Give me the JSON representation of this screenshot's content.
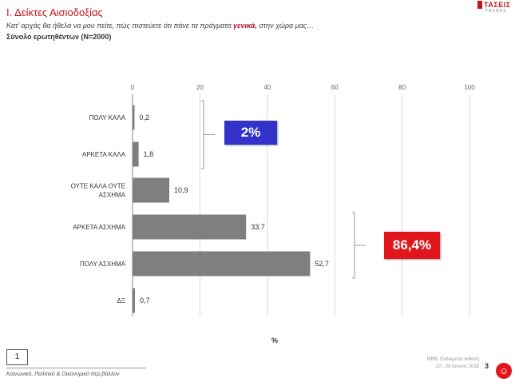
{
  "header": {
    "title": "Ι. Δείκτες Αισιοδοξίας",
    "subtitle_before": "Κατ’ αρχάς θα ήθελα να μου πείτε, πώς πιστεύετε ότι πάνε τα πράγματα ",
    "subtitle_highlight": "γενικά,",
    "subtitle_after": " στην χώρα μας…",
    "sample": "Σύνολο ερωτηθέντων (N=2000)"
  },
  "logo": {
    "name": "TAΣΕΙΣ",
    "tagline": "TRENDS"
  },
  "chart_data": {
    "type": "bar",
    "orientation": "horizontal",
    "categories": [
      [
        "ΠΟΛΥ ΚΑΛΑ"
      ],
      [
        "ΑΡΚΕΤΑ ΚΑΛΑ"
      ],
      [
        "ΟΥΤΕ ΚΑΛΑ ΟΥΤΕ",
        "ΑΣΧΗΜΑ"
      ],
      [
        "ΑΡΚΕΤΑ ΑΣΧΗΜΑ"
      ],
      [
        "ΠΟΛΥ ΑΣΧΗΜΑ"
      ],
      [
        "ΔΞ"
      ]
    ],
    "values": [
      0.2,
      1.8,
      10.9,
      33.7,
      52.7,
      0.7
    ],
    "value_labels": [
      "0,2",
      "1,8",
      "10,9",
      "33,7",
      "52,7",
      "0,7"
    ],
    "xlim": [
      0,
      100
    ],
    "xticks": [
      0,
      20,
      40,
      60,
      80,
      100
    ],
    "xtick_labels": [
      "0",
      "20",
      "40",
      "60",
      "80",
      "100"
    ],
    "xlabel": "%",
    "grid": true,
    "bar_color": "#7f7f7f",
    "callouts": [
      {
        "text": "2%",
        "color": "#3333cc",
        "groups": [
          0,
          1
        ]
      },
      {
        "text": "86,4%",
        "color": "#e0161c",
        "groups": [
          3,
          4
        ]
      }
    ]
  },
  "footer": {
    "page_box": "1",
    "source": "Κοινωνικό, Πολιτικό & Οικονομικό περ.βάλλον",
    "right_line1": "MRB, Ενδιαμεσα εκθεση",
    "right_line2": "22 - 29 Ιουνιος 2018",
    "page_number": "3"
  }
}
